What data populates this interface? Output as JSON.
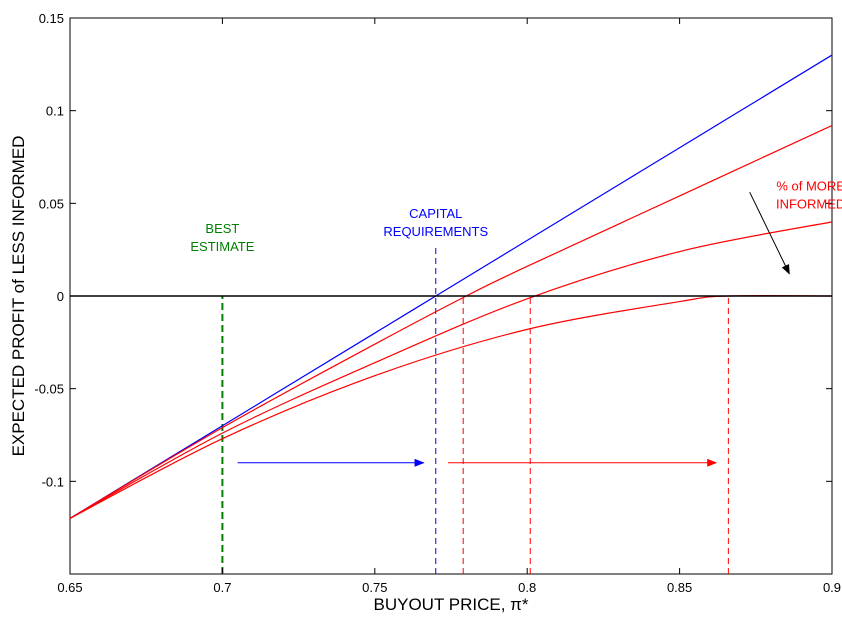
{
  "chart_data": {
    "type": "line",
    "xlabel": "BUYOUT PRICE, π*",
    "ylabel": "EXPECTED PROFIT of LESS INFORMED",
    "xlim": [
      0.65,
      0.9
    ],
    "ylim": [
      -0.15,
      0.15
    ],
    "xticks": [
      0.65,
      0.7,
      0.75,
      0.8,
      0.85,
      0.9
    ],
    "xtick_labels": [
      "0.65",
      "0.7",
      "0.75",
      "0.8",
      "0.85",
      "0.9"
    ],
    "yticks": [
      -0.1,
      -0.05,
      0,
      0.05,
      0.1,
      0.15
    ],
    "ytick_labels": [
      "-0.1",
      "-0.05",
      "0",
      "0.05",
      "0.1",
      "0.15"
    ],
    "grid": false,
    "colors": {
      "blue": "#0000ff",
      "red": "#ff0000",
      "green": "#007f00",
      "black": "#000000"
    },
    "series": [
      {
        "color": "#0000ff",
        "x": [
          0.65,
          0.7,
          0.75,
          0.77,
          0.8,
          0.85,
          0.9
        ],
        "y": [
          -0.12,
          -0.07,
          -0.02,
          0.0,
          0.03,
          0.08,
          0.13
        ]
      },
      {
        "color": "#ff0000",
        "x": [
          0.65,
          0.7,
          0.75,
          0.78,
          0.8,
          0.85,
          0.9
        ],
        "y": [
          -0.12,
          -0.071,
          -0.026,
          0.0,
          0.016,
          0.054,
          0.092
        ]
      },
      {
        "color": "#ff0000",
        "x": [
          0.65,
          0.7,
          0.75,
          0.8,
          0.85,
          0.9
        ],
        "y": [
          -0.12,
          -0.074,
          -0.036,
          -0.0015,
          0.024,
          0.04
        ]
      },
      {
        "color": "#ff0000",
        "x": [
          0.65,
          0.7,
          0.75,
          0.8,
          0.85,
          0.866,
          0.9
        ],
        "y": [
          -0.12,
          -0.077,
          -0.043,
          -0.018,
          -0.003,
          0.0,
          0.0
        ]
      }
    ],
    "zero_line": {
      "color": "#000000",
      "y": 0
    },
    "vlines": [
      {
        "x": 0.7,
        "y_from": -0.15,
        "y_to": 0.0,
        "color": "#007f00",
        "style": "dashed-bold"
      },
      {
        "x": 0.77,
        "y_from": -0.15,
        "y_to": 0.027,
        "color": "#0000ff",
        "style": "dashed"
      },
      {
        "x": 0.779,
        "y_from": -0.15,
        "y_to": 0.0,
        "color": "#ff0000",
        "style": "dashed"
      },
      {
        "x": 0.801,
        "y_from": -0.15,
        "y_to": 0.0,
        "color": "#ff0000",
        "style": "dashed"
      },
      {
        "x": 0.866,
        "y_from": -0.15,
        "y_to": 0.0,
        "color": "#ff0000",
        "style": "dashed"
      }
    ],
    "arrows": [
      {
        "x1": 0.705,
        "y1": -0.09,
        "x2": 0.766,
        "y2": -0.09,
        "color": "#0000ff"
      },
      {
        "x1": 0.774,
        "y1": -0.09,
        "x2": 0.862,
        "y2": -0.09,
        "color": "#ff0000"
      },
      {
        "x1": 0.873,
        "y1": 0.056,
        "x2": 0.886,
        "y2": 0.012,
        "color": "#000000"
      }
    ],
    "annotations": [
      {
        "lines": [
          "BEST",
          "ESTIMATE"
        ],
        "x": 0.7,
        "y": 0.034,
        "color": "#007f00"
      },
      {
        "lines": [
          "CAPITAL",
          "REQUIREMENTS"
        ],
        "x": 0.77,
        "y": 0.042,
        "color": "#0000ff"
      },
      {
        "lines": [
          "% of MORE",
          "INFORMED"
        ],
        "x": 0.893,
        "y": 0.057,
        "color": "#ff0000"
      }
    ]
  }
}
